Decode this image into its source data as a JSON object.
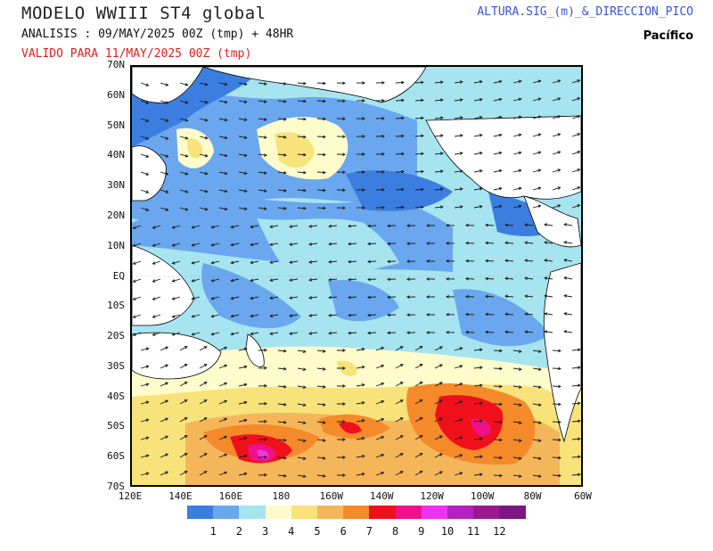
{
  "header": {
    "title": "MODELO WWIII ST4 global",
    "analisis": "ANALISIS : 09/MAY/2025 00Z  (tmp) + 48HR",
    "valido": "VALIDO PARA  11/MAY/2025 00Z  (tmp)",
    "field": "ALTURA.SIG_(m)_&_DIRECCION_PICO",
    "basin": "Pacífico"
  },
  "map": {
    "lat_labels": [
      "70N",
      "60N",
      "50N",
      "40N",
      "30N",
      "20N",
      "10N",
      "EQ",
      "10S",
      "20S",
      "30S",
      "40S",
      "50S",
      "60S",
      "70S"
    ],
    "lon_labels": [
      "120E",
      "140E",
      "160E",
      "180",
      "160W",
      "140W",
      "120W",
      "100W",
      "80W",
      "60W"
    ],
    "colors": {
      "land": "#ffffff",
      "sea_ice": "#3d7fd8"
    }
  },
  "colorbar": {
    "labels": [
      "1",
      "2",
      "3",
      "4",
      "5",
      "6",
      "7",
      "8",
      "9",
      "10",
      "11",
      "12"
    ],
    "colors": [
      "#3c7ee0",
      "#6aa7ee",
      "#a6e4f0",
      "#fffccc",
      "#f8e27a",
      "#f5b65a",
      "#f58a2a",
      "#f0101c",
      "#f0108a",
      "#f032f0",
      "#b322c0",
      "#9a1a8e",
      "#7c1782"
    ]
  }
}
